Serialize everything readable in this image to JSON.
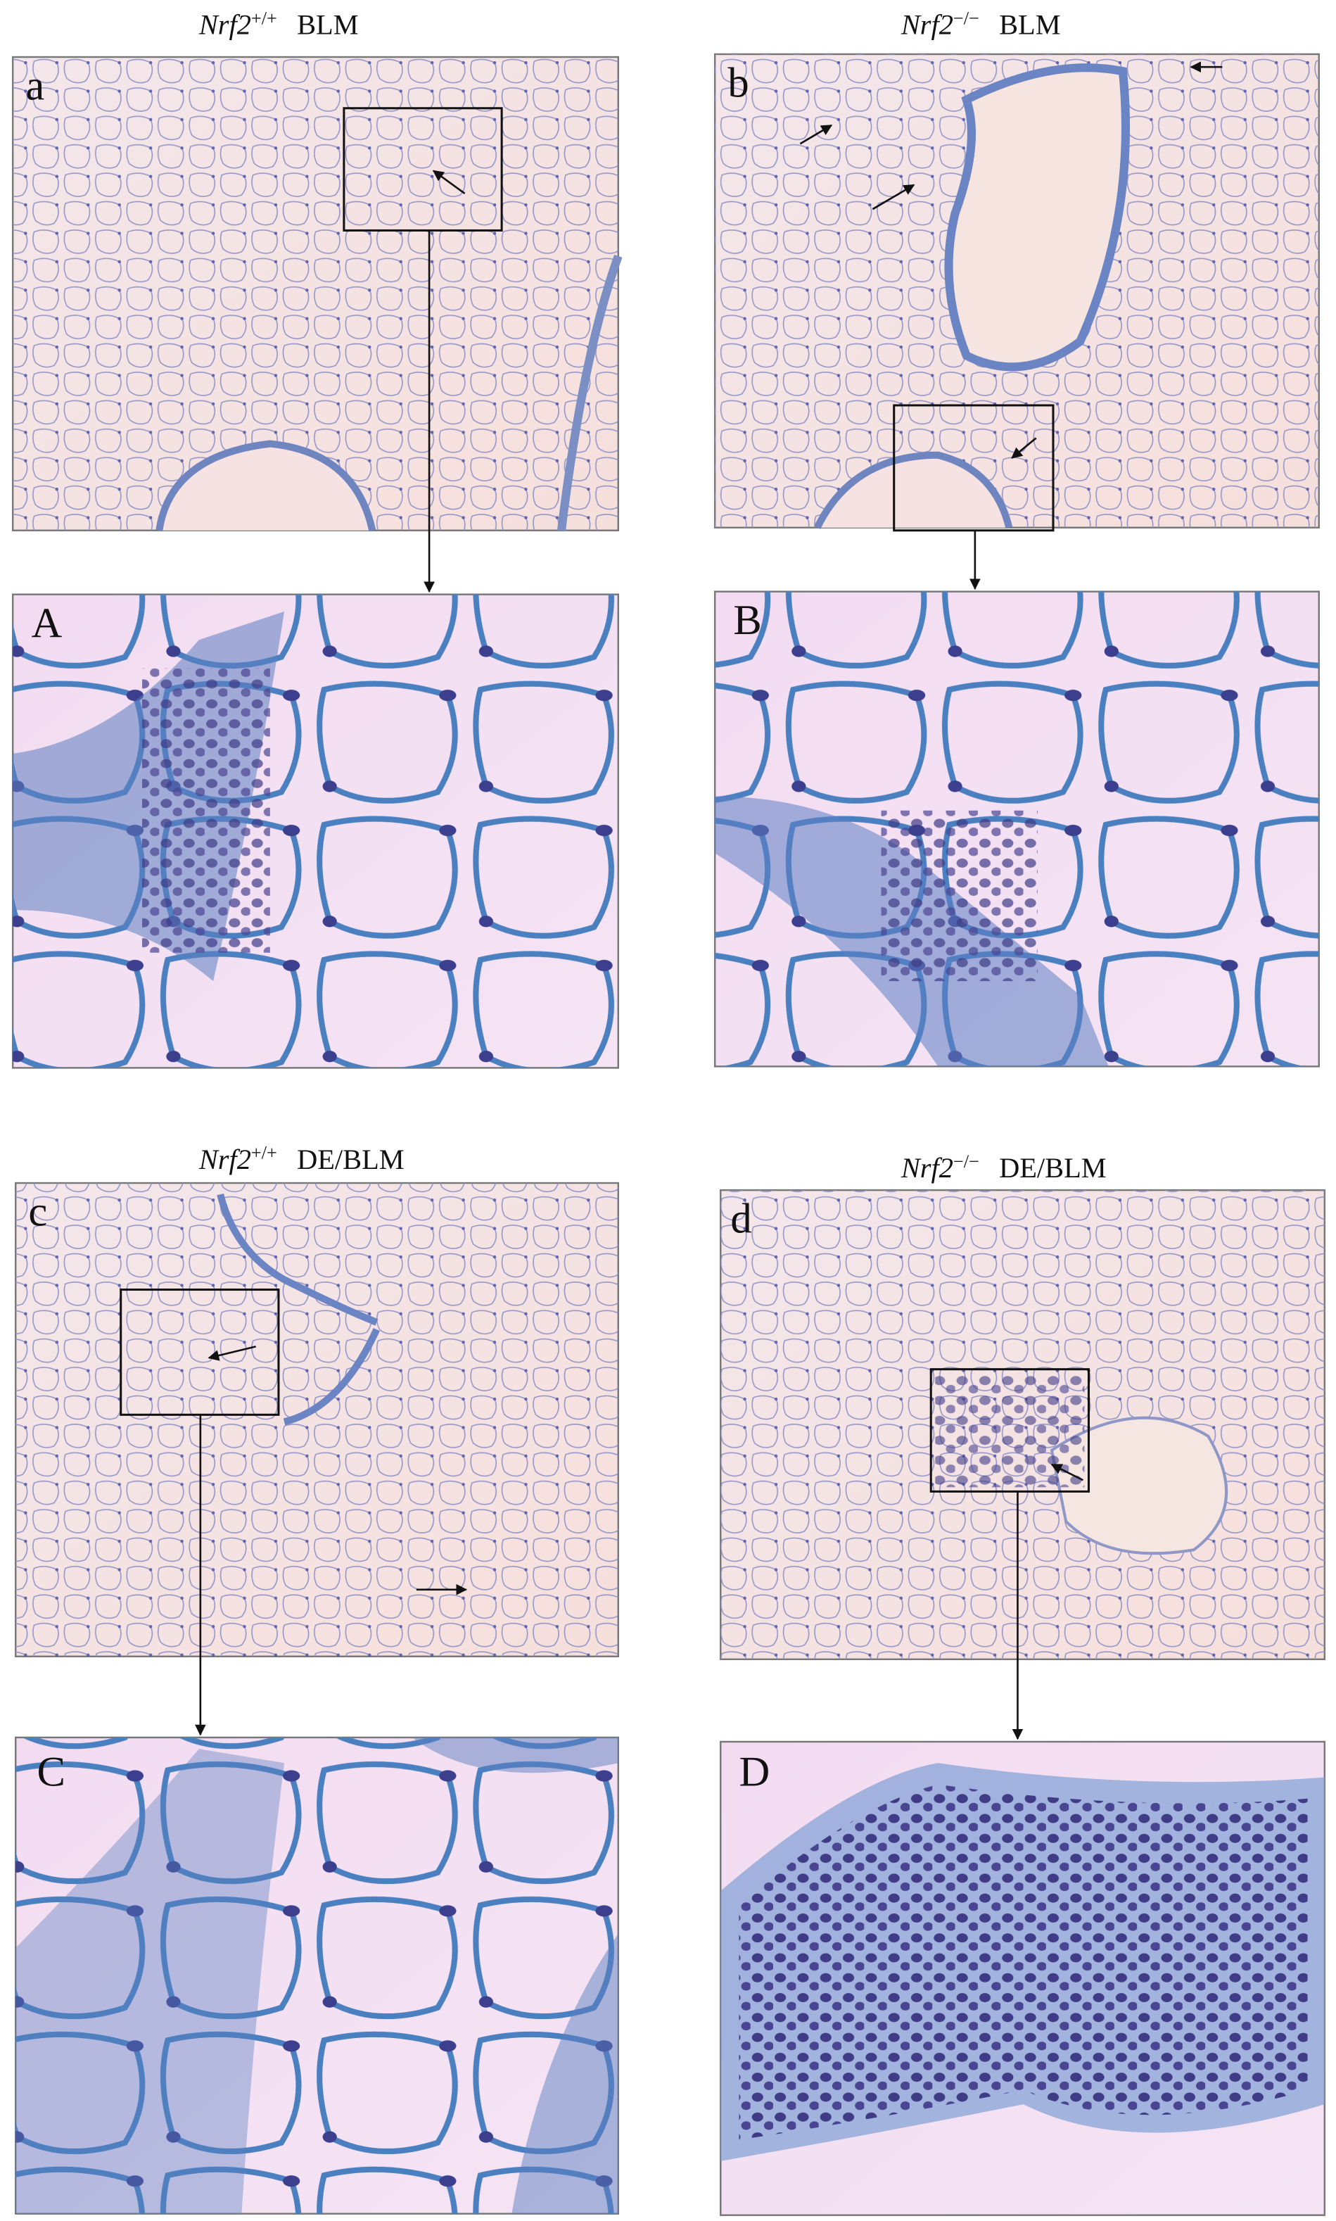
{
  "headings": [
    {
      "gene": "Nrf2",
      "genotype": "+/+",
      "treatment": "BLM"
    },
    {
      "gene": "Nrf2",
      "genotype": "−/−",
      "treatment": "BLM"
    },
    {
      "gene": "Nrf2",
      "genotype": "+/+",
      "treatment": "DE/BLM"
    },
    {
      "gene": "Nrf2",
      "genotype": "−/−",
      "treatment": "DE/BLM"
    }
  ],
  "panels": [
    {
      "label": "a"
    },
    {
      "label": "A"
    },
    {
      "label": "b"
    },
    {
      "label": "B"
    },
    {
      "label": "c"
    },
    {
      "label": "C"
    },
    {
      "label": "d"
    },
    {
      "label": "D"
    }
  ]
}
